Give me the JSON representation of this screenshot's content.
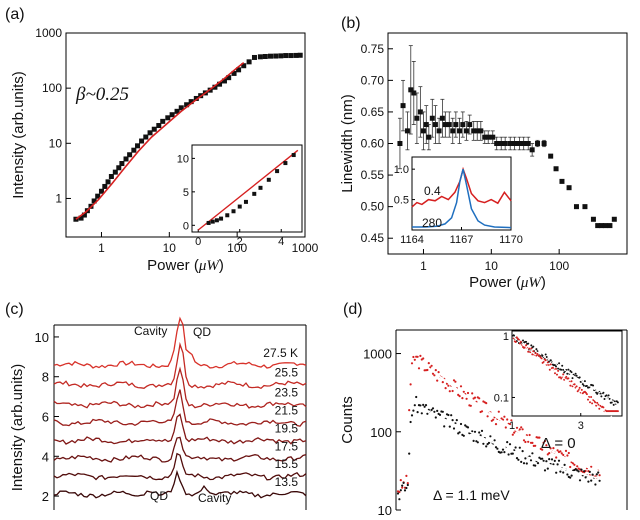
{
  "colors": {
    "red": "#d62020",
    "black": "#111111",
    "blue": "#1f6fbf",
    "axis": "#000000"
  },
  "chart_data": [
    {
      "id": "a",
      "panel_label": "(a)",
      "type": "scatter",
      "title": "",
      "xlabel_prefix": "Power (",
      "xlabel_unit": "μW",
      "xlabel_suffix": ")",
      "ylabel": "Intensity (arb.units)",
      "xscale": "log",
      "yscale": "log",
      "xlim": [
        0.3,
        1000
      ],
      "ylim": [
        0.2,
        1000
      ],
      "xticks": [
        1,
        10,
        100,
        1000
      ],
      "xtick_labels": [
        "1",
        "10",
        "100",
        "1000"
      ],
      "yticks": [
        1,
        10,
        100,
        1000
      ],
      "ytick_labels": [
        "1",
        "10",
        "100",
        "1000"
      ],
      "annotation": "β~0.25",
      "x": [
        0.42,
        0.5,
        0.56,
        0.62,
        0.7,
        0.78,
        0.88,
        1.0,
        1.12,
        1.25,
        1.4,
        1.6,
        1.8,
        2.0,
        2.3,
        2.6,
        3.0,
        3.4,
        3.9,
        4.5,
        5.2,
        6.0,
        7.0,
        8.0,
        9.5,
        11,
        13,
        15,
        18,
        21,
        25,
        29,
        34,
        40,
        47,
        55,
        65,
        75,
        90,
        105,
        125,
        150,
        180,
        220,
        260,
        310,
        370,
        440,
        520,
        620,
        740,
        850
      ],
      "y": [
        0.42,
        0.44,
        0.5,
        0.6,
        0.72,
        0.9,
        1.1,
        1.35,
        1.65,
        2.0,
        2.5,
        3.0,
        3.6,
        4.3,
        5.2,
        6.2,
        7.5,
        9.0,
        11,
        13,
        15.5,
        18,
        21,
        25,
        29,
        33,
        38,
        44,
        50,
        57,
        65,
        73,
        82,
        92,
        104,
        118,
        135,
        155,
        185,
        215,
        255,
        300,
        360,
        370,
        375,
        380,
        382,
        385,
        390,
        390,
        392,
        395
      ],
      "fit": {
        "x": [
          0.42,
          0.6,
          0.9,
          1.4,
          2.2,
          3.5,
          5.5,
          9,
          15,
          25,
          40,
          65,
          100,
          125
        ],
        "y": [
          0.42,
          0.58,
          0.95,
          1.8,
          3.6,
          7.2,
          13,
          22,
          38,
          62,
          95,
          150,
          235,
          290
        ]
      },
      "inset": {
        "type": "scatter",
        "xlim": [
          -0.3,
          5
        ],
        "ylim": [
          -1,
          12
        ],
        "xticks": [
          0,
          2,
          4
        ],
        "xtick_labels": [
          "0",
          "2",
          "4"
        ],
        "yticks": [
          0,
          5,
          10
        ],
        "ytick_labels": [
          "0",
          "5",
          "10"
        ],
        "x": [
          0.5,
          0.7,
          0.9,
          1.1,
          1.4,
          1.7,
          2.0,
          2.3,
          2.7,
          3.0,
          3.4,
          3.8,
          4.2,
          4.6
        ],
        "y": [
          0.35,
          0.55,
          0.75,
          1.0,
          1.5,
          2.1,
          2.8,
          3.5,
          4.7,
          5.6,
          6.8,
          8.1,
          9.3,
          10.5
        ],
        "fit_x": [
          0.0,
          4.8
        ],
        "fit_y": [
          -0.7,
          11.2
        ]
      }
    },
    {
      "id": "b",
      "panel_label": "(b)",
      "type": "scatter",
      "title": "",
      "xlabel_prefix": "Power (",
      "xlabel_unit": "μW",
      "xlabel_suffix": ")",
      "ylabel": "Linewidth (nm)",
      "xscale": "log",
      "yscale": "linear",
      "xlim": [
        0.3,
        1000
      ],
      "ylim": [
        0.425,
        0.775
      ],
      "xticks": [
        1,
        10,
        100
      ],
      "xtick_labels": [
        "1",
        "10",
        "100"
      ],
      "yticks": [
        0.45,
        0.5,
        0.55,
        0.6,
        0.65,
        0.7,
        0.75
      ],
      "ytick_labels": [
        "0.45",
        "0.50",
        "0.55",
        "0.60",
        "0.65",
        "0.70",
        "0.75"
      ],
      "x": [
        0.45,
        0.5,
        0.58,
        0.65,
        0.72,
        0.8,
        0.9,
        1.0,
        1.1,
        1.2,
        1.35,
        1.5,
        1.7,
        1.9,
        2.1,
        2.4,
        2.7,
        3.0,
        3.4,
        3.8,
        4.3,
        4.8,
        5.5,
        6.2,
        7.0,
        8.0,
        9.0,
        10.5,
        12,
        14,
        16,
        19,
        22,
        26,
        30,
        35,
        40,
        48,
        60,
        75,
        90,
        110,
        140,
        180,
        240,
        320,
        370,
        420,
        480,
        560,
        650
      ],
      "y": [
        0.6,
        0.66,
        0.62,
        0.685,
        0.68,
        0.64,
        0.65,
        0.62,
        0.63,
        0.61,
        0.64,
        0.63,
        0.62,
        0.64,
        0.63,
        0.63,
        0.62,
        0.63,
        0.62,
        0.63,
        0.62,
        0.63,
        0.62,
        0.62,
        0.62,
        0.61,
        0.61,
        0.61,
        0.6,
        0.6,
        0.6,
        0.6,
        0.6,
        0.6,
        0.6,
        0.6,
        0.59,
        0.6,
        0.6,
        0.58,
        0.56,
        0.54,
        0.53,
        0.5,
        0.5,
        0.48,
        0.47,
        0.47,
        0.47,
        0.47,
        0.48
      ],
      "err": [
        0.04,
        0.04,
        0.03,
        0.07,
        0.05,
        0.04,
        0.04,
        0.03,
        0.03,
        0.02,
        0.03,
        0.03,
        0.02,
        0.03,
        0.02,
        0.02,
        0.02,
        0.02,
        0.02,
        0.02,
        0.015,
        0.015,
        0.015,
        0.015,
        0.015,
        0.01,
        0.01,
        0.01,
        0.01,
        0.01,
        0.01,
        0.01,
        0.01,
        0.01,
        0.01,
        0.01,
        0.01,
        0.005,
        0.005,
        0,
        0,
        0,
        0,
        0,
        0,
        0,
        0,
        0,
        0,
        0,
        0
      ],
      "inset": {
        "type": "line",
        "xlim": [
          1164,
          1170
        ],
        "ylim": [
          0,
          1.2
        ],
        "xticks": [
          1164,
          1167,
          1170
        ],
        "xtick_labels": [
          "1164",
          "1167",
          "1170"
        ],
        "yticks": [
          0.5,
          1.0
        ],
        "ytick_labels": [
          "0.5",
          "1.0"
        ],
        "series": [
          {
            "name": "0.4",
            "x": [
              1164,
              1164.3,
              1164.6,
              1165,
              1165.4,
              1165.8,
              1166.2,
              1166.6,
              1166.9,
              1167.1,
              1167.3,
              1167.6,
              1168,
              1168.4,
              1168.8,
              1169.2,
              1169.6,
              1170
            ],
            "y": [
              0.38,
              0.45,
              0.42,
              0.5,
              0.48,
              0.55,
              0.5,
              0.62,
              0.8,
              1.0,
              0.85,
              0.6,
              0.48,
              0.45,
              0.5,
              0.44,
              0.62,
              0.48
            ]
          },
          {
            "name": "280",
            "x": [
              1164,
              1164.8,
              1165.5,
              1166,
              1166.4,
              1166.7,
              1166.9,
              1167.1,
              1167.3,
              1167.6,
              1168,
              1168.4,
              1169,
              1170
            ],
            "y": [
              0.05,
              0.05,
              0.06,
              0.1,
              0.2,
              0.45,
              0.8,
              1.0,
              0.75,
              0.35,
              0.15,
              0.08,
              0.05,
              0.04
            ]
          }
        ]
      }
    },
    {
      "id": "c",
      "panel_label": "(c)",
      "type": "line",
      "title": "",
      "xlabel": "",
      "ylabel": "Intensity (arb.units)",
      "ylim": [
        1.3,
        10.6
      ],
      "yticks": [
        2,
        4,
        6,
        8,
        10
      ],
      "ytick_labels": [
        "2",
        "4",
        "6",
        "8",
        "10"
      ],
      "series_labels": [
        "27.5 K",
        "25.5",
        "23.5",
        "21.5",
        "19.5",
        "17.5",
        "15.5",
        "13.5"
      ],
      "series_offsets": [
        8.6,
        7.6,
        6.6,
        5.7,
        4.8,
        3.9,
        3.0,
        2.1
      ],
      "series_colors": [
        "#d8322a",
        "#c42a24",
        "#b0241f",
        "#9a1e1b",
        "#821816",
        "#6a1211",
        "#520d0c",
        "#3a0808"
      ],
      "annotations": {
        "cavity_top": "Cavity",
        "qd_top": "QD",
        "qd_bottom": "QD",
        "cavity_bottom": "Cavity"
      }
    },
    {
      "id": "d",
      "panel_label": "(d)",
      "type": "scatter",
      "title": "",
      "xlabel": "",
      "ylabel": "Counts",
      "yscale": "log",
      "ylim": [
        10,
        2000
      ],
      "yticks": [
        10,
        100,
        1000
      ],
      "ytick_labels": [
        "10",
        "100",
        "1000"
      ],
      "series": [
        {
          "name": "Δ = 0",
          "peak": 900,
          "decay_tau": 1.0,
          "floor": 18
        },
        {
          "name": "Δ = 1.1 meV",
          "peak": 230,
          "decay_tau": 1.35,
          "floor": 16
        }
      ],
      "inset": {
        "xlim": [
          1,
          4.2
        ],
        "ylim": [
          0.05,
          1.2
        ],
        "xticks": [
          1,
          3
        ],
        "xtick_labels": [
          "1",
          "3"
        ],
        "yticks": [
          0.1,
          1
        ],
        "ytick_labels": [
          "0.1",
          "1"
        ]
      }
    }
  ]
}
